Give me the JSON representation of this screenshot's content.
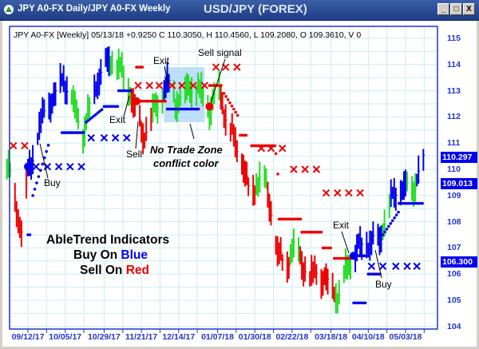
{
  "window": {
    "title": "JPY A0-FX Daily/JPY A0-FX Weekly",
    "chart_title": "USD/JPY (FOREX)",
    "buttons": {
      "minimize": "_",
      "maximize": "□",
      "close": "X"
    }
  },
  "legend_text": "JPY A0-FX [Weekly] 05/13/18  +0.9250 C 110.3050, H 110.4560, L 109.2080, O 109.3610, V 0",
  "annotations": {
    "exit_1": "Exit",
    "exit_2": "Exit",
    "exit_3": "Exit",
    "sell": "Sell",
    "sell_signal": "Sell signal",
    "buy_1": "Buy",
    "buy_2": "Buy",
    "no_trade_1": "No Trade Zone",
    "no_trade_2": "conflict color",
    "headline_1": "AbleTrend Indicators",
    "headline_2a": "Buy On ",
    "headline_2b": "Blue",
    "headline_3a": "Sell On ",
    "headline_3b": "Red"
  },
  "chart_data": {
    "type": "ohlc-bar",
    "ylim": [
      104,
      115
    ],
    "yticks": [
      "115",
      "114",
      "113",
      "112",
      "111",
      "110",
      "109",
      "108",
      "107",
      "106",
      "105",
      "104"
    ],
    "xticks": [
      "09/12/17",
      "10/05/17",
      "10/29/17",
      "11/21/17",
      "12/14/17",
      "01/07/18",
      "01/30/18",
      "02/22/18",
      "03/18/18",
      "04/10/18",
      "05/03/18"
    ],
    "xtick_dates": [
      "2017-09-12",
      "2017-10-05",
      "2017-10-29",
      "2017-11-21",
      "2017-12-14",
      "2018-01-07",
      "2018-01-30",
      "2018-02-22",
      "2018-03-18",
      "2018-04-10",
      "2018-05-03"
    ],
    "grid": true,
    "colors": {
      "blue": "#0000ee",
      "red": "#ee0000",
      "green": "#22dd22",
      "zone": "#a9d4f5"
    },
    "price_labels": [
      "110.297",
      "109.013",
      "106.300"
    ],
    "price_label_values": [
      110.297,
      109.013,
      106.3
    ],
    "close_path": [
      [
        "2017-08-30",
        110.2
      ],
      [
        "2017-09-01",
        109.7
      ],
      [
        "2017-09-05",
        108.5
      ],
      [
        "2017-09-08",
        107.6
      ],
      [
        "2017-09-12",
        109.8
      ],
      [
        "2017-09-19",
        111.6
      ],
      [
        "2017-09-24",
        112.5
      ],
      [
        "2017-09-29",
        112.8
      ],
      [
        "2017-10-04",
        113.5
      ],
      [
        "2017-10-11",
        112.3
      ],
      [
        "2017-10-16",
        111.4
      ],
      [
        "2017-10-21",
        112.5
      ],
      [
        "2017-10-26",
        113.6
      ],
      [
        "2017-10-31",
        114.0
      ],
      [
        "2017-11-05",
        114.3
      ],
      [
        "2017-11-10",
        113.5
      ],
      [
        "2017-11-15",
        112.8
      ],
      [
        "2017-11-18",
        112.0
      ],
      [
        "2017-11-22",
        111.3
      ],
      [
        "2017-11-27",
        112.0
      ],
      [
        "2017-12-02",
        112.6
      ],
      [
        "2017-12-07",
        113.3
      ],
      [
        "2017-12-12",
        112.6
      ],
      [
        "2017-12-17",
        112.8
      ],
      [
        "2017-12-22",
        113.2
      ],
      [
        "2017-12-27",
        113.0
      ],
      [
        "2018-01-02",
        112.3
      ],
      [
        "2018-01-08",
        113.0
      ],
      [
        "2018-01-13",
        111.8
      ],
      [
        "2018-01-18",
        111.0
      ],
      [
        "2018-01-23",
        110.2
      ],
      [
        "2018-01-27",
        108.8
      ],
      [
        "2018-01-31",
        109.5
      ],
      [
        "2018-02-04",
        109.8
      ],
      [
        "2018-02-09",
        108.5
      ],
      [
        "2018-02-13",
        106.8
      ],
      [
        "2018-02-18",
        106.3
      ],
      [
        "2018-02-23",
        107.0
      ],
      [
        "2018-02-28",
        106.5
      ],
      [
        "2018-03-05",
        105.8
      ],
      [
        "2018-03-09",
        106.2
      ],
      [
        "2018-03-14",
        105.7
      ],
      [
        "2018-03-20",
        105.4
      ],
      [
        "2018-03-24",
        105.0
      ],
      [
        "2018-03-27",
        106.2
      ],
      [
        "2018-04-02",
        106.8
      ],
      [
        "2018-04-07",
        107.2
      ],
      [
        "2018-04-12",
        107.2
      ],
      [
        "2018-04-17",
        107.3
      ],
      [
        "2018-04-22",
        108.5
      ],
      [
        "2018-04-27",
        109.2
      ],
      [
        "2018-05-02",
        109.3
      ],
      [
        "2018-05-07",
        109.2
      ],
      [
        "2018-05-14",
        110.3
      ]
    ],
    "bar_colors": [
      [
        "2017-08-30",
        "2017-09-02",
        "green"
      ],
      [
        "2017-09-03",
        "2017-09-11",
        "red"
      ],
      [
        "2017-09-12",
        "2017-10-07",
        "blue"
      ],
      [
        "2017-10-08",
        "2017-10-20",
        "green"
      ],
      [
        "2017-10-21",
        "2017-11-01",
        "blue"
      ],
      [
        "2017-11-02",
        "2017-11-14",
        "green"
      ],
      [
        "2017-11-15",
        "2017-11-27",
        "red"
      ],
      [
        "2017-11-28",
        "2017-12-04",
        "green"
      ],
      [
        "2017-12-05",
        "2017-12-10",
        "blue"
      ],
      [
        "2017-12-11",
        "2018-01-08",
        "green"
      ],
      [
        "2018-01-09",
        "2018-01-30",
        "red"
      ],
      [
        "2018-01-31",
        "2018-02-06",
        "green"
      ],
      [
        "2018-02-07",
        "2018-02-20",
        "red"
      ],
      [
        "2018-02-21",
        "2018-02-26",
        "green"
      ],
      [
        "2018-02-27",
        "2018-03-20",
        "red"
      ],
      [
        "2018-03-21",
        "2018-03-30",
        "green"
      ],
      [
        "2018-03-31",
        "2018-04-18",
        "blue"
      ],
      [
        "2018-04-19",
        "2018-04-23",
        "green"
      ],
      [
        "2018-04-24",
        "2018-05-03",
        "blue"
      ],
      [
        "2018-05-04",
        "2018-05-09",
        "green"
      ],
      [
        "2018-05-10",
        "2018-05-14",
        "blue"
      ]
    ],
    "x_markers": [
      {
        "color": "red",
        "price": 110.9,
        "dates": [
          "2017-09-03",
          "2017-09-10"
        ]
      },
      {
        "color": "blue",
        "price": 110.1,
        "dates": [
          "2017-09-17",
          "2017-09-24",
          "2017-10-01",
          "2017-10-08",
          "2017-10-15"
        ]
      },
      {
        "color": "blue",
        "price": 111.2,
        "dates": [
          "2017-10-21",
          "2017-10-29",
          "2017-11-05",
          "2017-11-12"
        ]
      },
      {
        "color": "red",
        "price": 113.2,
        "dates": [
          "2017-11-19",
          "2017-11-26",
          "2017-12-02",
          "2017-12-10",
          "2017-12-16",
          "2017-12-23",
          "2017-12-30"
        ]
      },
      {
        "color": "red",
        "price": 113.9,
        "dates": [
          "2018-01-06",
          "2018-01-12",
          "2018-01-19"
        ]
      },
      {
        "color": "red",
        "price": 110.8,
        "dates": [
          "2018-02-03",
          "2018-02-09",
          "2018-02-16"
        ]
      },
      {
        "color": "red",
        "price": 110.0,
        "dates": [
          "2018-02-23",
          "2018-03-02",
          "2018-03-09"
        ]
      },
      {
        "color": "red",
        "price": 109.1,
        "dates": [
          "2018-03-15",
          "2018-03-22",
          "2018-03-29",
          "2018-04-05"
        ]
      },
      {
        "color": "blue",
        "price": 106.3,
        "dates": [
          "2018-04-12",
          "2018-04-19",
          "2018-04-27",
          "2018-05-04",
          "2018-05-10"
        ]
      }
    ],
    "stop_dots": [
      [
        "2017-09-12",
        "2017-09-14",
        107.5,
        107.5,
        "blue"
      ],
      [
        "2017-09-15",
        "2017-09-25",
        109.0,
        111.0,
        "blue"
      ],
      [
        "2017-10-03",
        "2017-10-17",
        111.4,
        111.4,
        "blue"
      ],
      [
        "2017-10-18",
        "2017-10-28",
        111.8,
        112.3,
        "blue"
      ],
      [
        "2017-10-29",
        "2017-11-07",
        112.4,
        112.4,
        "blue"
      ],
      [
        "2017-11-07",
        "2017-11-15",
        113.0,
        113.0,
        "blue"
      ],
      [
        "2017-11-18",
        "2017-11-22",
        113.9,
        113.9,
        "red"
      ],
      [
        "2017-11-19",
        "2017-12-07",
        112.6,
        112.6,
        "red"
      ],
      [
        "2017-12-07",
        "2017-12-27",
        112.3,
        112.3,
        "blue"
      ],
      [
        "2018-01-02",
        "2018-01-10",
        113.2,
        113.2,
        "red"
      ],
      [
        "2018-01-11",
        "2018-01-20",
        112.9,
        112.0,
        "red"
      ],
      [
        "2018-01-21",
        "2018-01-25",
        111.3,
        111.3,
        "red"
      ],
      [
        "2018-01-28",
        "2018-02-12",
        110.9,
        110.9,
        "red"
      ],
      [
        "2018-02-12",
        "2018-02-14",
        110.6,
        109.3,
        "red"
      ],
      [
        "2018-02-14",
        "2018-02-28",
        108.1,
        108.1,
        "red"
      ],
      [
        "2018-02-28",
        "2018-03-13",
        107.6,
        107.6,
        "red"
      ],
      [
        "2018-03-13",
        "2018-03-18",
        107.0,
        107.0,
        "red"
      ],
      [
        "2018-03-20",
        "2018-04-02",
        106.6,
        106.6,
        "red"
      ],
      [
        "2018-04-02",
        "2018-04-08",
        106.7,
        106.7,
        "blue"
      ],
      [
        "2018-04-01",
        "2018-04-09",
        104.9,
        104.9,
        "blue"
      ],
      [
        "2018-04-10",
        "2018-04-18",
        106.0,
        106.0,
        "blue"
      ],
      [
        "2018-04-19",
        "2018-04-29",
        107.5,
        108.4,
        "blue"
      ],
      [
        "2018-04-29",
        "2018-05-14",
        108.7,
        108.7,
        "blue"
      ]
    ],
    "signal_dots": [
      [
        "2017-09-12",
        110.1,
        "blue"
      ],
      [
        "2017-11-18",
        112.6,
        "red"
      ],
      [
        "2018-01-02",
        112.4,
        "red"
      ],
      [
        "2018-04-01",
        106.7,
        "blue"
      ]
    ],
    "no_trade_zone": {
      "from": "2017-12-05",
      "to": "2017-12-30",
      "high": 113.9,
      "low": 111.8
    }
  }
}
